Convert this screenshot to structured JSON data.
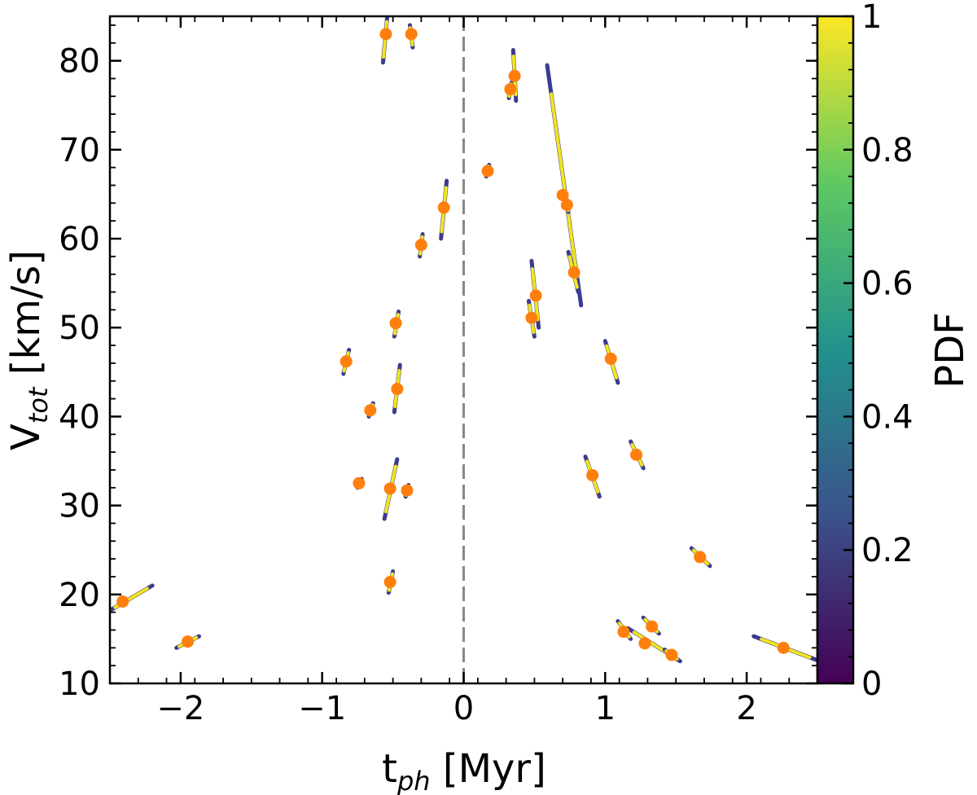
{
  "chart_data": {
    "type": "scatter",
    "xlabel": "t",
    "xlabel_sub": "ph",
    "xlabel_unit": " [Myr]",
    "ylabel": "V",
    "ylabel_sub": "tot",
    "ylabel_unit": " [km/s]",
    "xlim": [
      -2.5,
      2.5
    ],
    "ylim": [
      10,
      85
    ],
    "x_ticks": [
      -2,
      -1,
      0,
      1,
      2
    ],
    "x_tick_labels": [
      "−2",
      "−1",
      "0",
      "1",
      "2"
    ],
    "y_ticks": [
      10,
      20,
      30,
      40,
      50,
      60,
      70,
      80
    ],
    "y_tick_labels": [
      "10",
      "20",
      "30",
      "40",
      "50",
      "60",
      "70",
      "80"
    ],
    "vline_x": 0,
    "colorbar": {
      "label": "PDF",
      "range": [
        0,
        1
      ],
      "ticks": [
        0,
        0.2,
        0.4,
        0.6,
        0.8,
        1
      ],
      "tick_labels": [
        "0",
        "0.2",
        "0.4",
        "0.6",
        "0.8",
        "1"
      ],
      "colormap": [
        "#440154",
        "#3b528b",
        "#21918c",
        "#5ec962",
        "#fde725"
      ]
    },
    "marker_color": "#ff7f0e",
    "pdf_color": "#f2e51c",
    "pdf_edge_color": "#3b3b8f",
    "points": [
      {
        "x": -0.55,
        "y": 83.0,
        "track": [
          -0.57,
          79.8,
          -0.54,
          85.0
        ]
      },
      {
        "x": -0.37,
        "y": 83.0,
        "track": [
          -0.38,
          84.0,
          -0.36,
          81.5
        ]
      },
      {
        "x": -0.14,
        "y": 63.5,
        "track": [
          -0.16,
          60.0,
          -0.12,
          66.5
        ]
      },
      {
        "x": -0.3,
        "y": 59.3,
        "track": [
          -0.31,
          58.0,
          -0.29,
          60.5
        ]
      },
      {
        "x": -0.48,
        "y": 50.5,
        "track": [
          -0.49,
          49.0,
          -0.46,
          51.8
        ]
      },
      {
        "x": -0.83,
        "y": 46.2,
        "track": [
          -0.85,
          44.8,
          -0.81,
          47.5
        ]
      },
      {
        "x": -0.47,
        "y": 43.1,
        "track": [
          -0.49,
          40.5,
          -0.45,
          45.8
        ]
      },
      {
        "x": -0.66,
        "y": 40.7,
        "track": [
          -0.67,
          40.0,
          -0.64,
          41.5
        ]
      },
      {
        "x": -0.74,
        "y": 32.5,
        "track": [
          -0.75,
          32.0,
          -0.72,
          33.0
        ]
      },
      {
        "x": -0.52,
        "y": 31.9,
        "track": [
          -0.56,
          28.5,
          -0.47,
          35.2
        ]
      },
      {
        "x": -0.4,
        "y": 31.7,
        "track": [
          -0.41,
          31.0,
          -0.39,
          32.3
        ]
      },
      {
        "x": -0.52,
        "y": 21.4,
        "track": [
          -0.53,
          20.2,
          -0.5,
          22.6
        ]
      },
      {
        "x": -2.41,
        "y": 19.2,
        "track": [
          -2.5,
          18.2,
          -2.2,
          21.0
        ]
      },
      {
        "x": -1.95,
        "y": 14.7,
        "track": [
          -2.03,
          14.0,
          -1.87,
          15.3
        ]
      },
      {
        "x": 0.17,
        "y": 67.6,
        "track": [
          0.16,
          67.0,
          0.18,
          68.3
        ]
      },
      {
        "x": 0.33,
        "y": 76.8,
        "track": [
          0.32,
          75.8,
          0.34,
          77.6
        ]
      },
      {
        "x": 0.36,
        "y": 78.3,
        "track": [
          0.35,
          81.2,
          0.37,
          75.5
        ]
      },
      {
        "x": 0.7,
        "y": 64.9,
        "track": [
          0.59,
          79.5,
          0.83,
          52.5
        ]
      },
      {
        "x": 0.73,
        "y": 63.8,
        "track": [
          0.72,
          64.5,
          0.74,
          63.0
        ]
      },
      {
        "x": 0.78,
        "y": 56.2,
        "track": [
          0.74,
          58.5,
          0.81,
          54.0
        ]
      },
      {
        "x": 0.51,
        "y": 53.6,
        "track": [
          0.48,
          57.5,
          0.53,
          50.0
        ]
      },
      {
        "x": 0.48,
        "y": 51.1,
        "track": [
          0.46,
          53.0,
          0.5,
          49.0
        ]
      },
      {
        "x": 1.04,
        "y": 46.5,
        "track": [
          1.0,
          48.5,
          1.09,
          43.8
        ]
      },
      {
        "x": 1.22,
        "y": 35.7,
        "track": [
          1.18,
          37.2,
          1.27,
          34.2
        ]
      },
      {
        "x": 0.91,
        "y": 33.4,
        "track": [
          0.86,
          35.5,
          0.96,
          31.0
        ]
      },
      {
        "x": 1.67,
        "y": 24.2,
        "track": [
          1.61,
          25.2,
          1.74,
          23.2
        ]
      },
      {
        "x": 1.13,
        "y": 15.8,
        "track": [
          1.09,
          17.0,
          1.18,
          15.0
        ]
      },
      {
        "x": 1.28,
        "y": 14.5,
        "track": [
          1.16,
          16.2,
          1.53,
          12.5
        ]
      },
      {
        "x": 1.33,
        "y": 16.4,
        "track": [
          1.27,
          17.4,
          1.38,
          15.6
        ]
      },
      {
        "x": 1.47,
        "y": 13.2,
        "track": [
          1.42,
          13.8,
          1.52,
          12.6
        ]
      },
      {
        "x": 2.26,
        "y": 14.0,
        "track": [
          2.05,
          15.3,
          2.5,
          12.6
        ]
      }
    ]
  }
}
